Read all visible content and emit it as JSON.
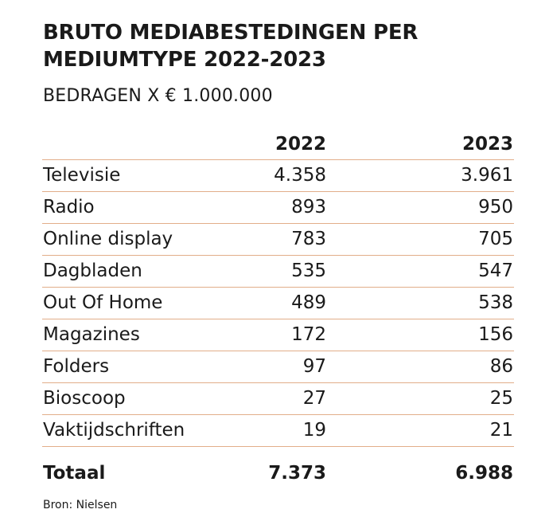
{
  "chart_data": {
    "type": "table",
    "title": "BRUTO MEDIABESTEDINGEN PER MEDIUMTYPE 2022-2023",
    "subtitle": "BEDRAGEN X € 1.000.000",
    "columns": [
      "2022",
      "2023"
    ],
    "rows": [
      {
        "label": "Televisie",
        "values": [
          "4.358",
          "3.961"
        ]
      },
      {
        "label": "Radio",
        "values": [
          "893",
          "950"
        ]
      },
      {
        "label": "Online display",
        "values": [
          "783",
          "705"
        ]
      },
      {
        "label": "Dagbladen",
        "values": [
          "535",
          "547"
        ]
      },
      {
        "label": "Out Of Home",
        "values": [
          "489",
          "538"
        ]
      },
      {
        "label": "Magazines",
        "values": [
          "172",
          "156"
        ]
      },
      {
        "label": "Folders",
        "values": [
          "97",
          "86"
        ]
      },
      {
        "label": "Bioscoop",
        "values": [
          "27",
          "25"
        ]
      },
      {
        "label": "Vaktijdschriften",
        "values": [
          "19",
          "21"
        ]
      }
    ],
    "total": {
      "label": "Totaal",
      "values": [
        "7.373",
        "6.988"
      ]
    },
    "source": "Bron: Nielsen",
    "rule_color": "#e2ae8a"
  }
}
